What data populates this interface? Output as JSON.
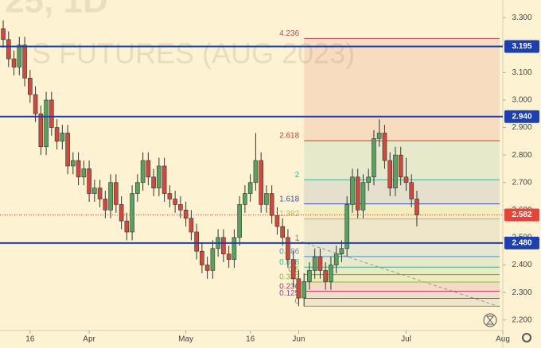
{
  "chart_data": {
    "type": "candlestick",
    "watermark": [
      "25, 1D",
      "S FUTURES (AUG 2023)"
    ],
    "up_color": "#5aa05e",
    "down_color": "#cf4a3c",
    "open": [
      3.26,
      3.22,
      3.15,
      3.12,
      3.2,
      3.08,
      3.02,
      2.95,
      2.83,
      3.0,
      2.9,
      2.85,
      2.88,
      2.76,
      2.78,
      2.72,
      2.75,
      2.66,
      2.68,
      2.64,
      2.6,
      2.7,
      2.62,
      2.56,
      2.52,
      2.66,
      2.7,
      2.78,
      2.72,
      2.68,
      2.76,
      2.66,
      2.64,
      2.62,
      2.6,
      2.57,
      2.52,
      2.45,
      2.4,
      2.38,
      2.46,
      2.5,
      2.44,
      2.42,
      2.5,
      2.62,
      2.66,
      2.7,
      2.78,
      2.62,
      2.66,
      2.58,
      2.54,
      2.5,
      2.42,
      2.35,
      2.28,
      2.34,
      2.38,
      2.43,
      2.38,
      2.34,
      2.4,
      2.44,
      2.46,
      2.62,
      2.72,
      2.6,
      2.7,
      2.72,
      2.86,
      2.88,
      2.78,
      2.68,
      2.8,
      2.72,
      2.7,
      2.64
    ],
    "high": [
      3.29,
      3.25,
      3.18,
      3.23,
      3.23,
      3.11,
      3.05,
      2.98,
      3.03,
      3.03,
      2.93,
      2.91,
      2.91,
      2.81,
      2.81,
      2.78,
      2.78,
      2.71,
      2.71,
      2.67,
      2.73,
      2.73,
      2.65,
      2.59,
      2.69,
      2.73,
      2.81,
      2.81,
      2.75,
      2.79,
      2.79,
      2.69,
      2.67,
      2.65,
      2.63,
      2.6,
      2.55,
      2.48,
      2.43,
      2.49,
      2.53,
      2.53,
      2.47,
      2.53,
      2.65,
      2.69,
      2.73,
      2.88,
      2.81,
      2.69,
      2.69,
      2.61,
      2.57,
      2.53,
      2.45,
      2.38,
      2.37,
      2.41,
      2.46,
      2.46,
      2.41,
      2.43,
      2.47,
      2.49,
      2.65,
      2.75,
      2.75,
      2.73,
      2.75,
      2.89,
      2.93,
      2.91,
      2.81,
      2.83,
      2.83,
      2.79,
      2.73,
      2.67
    ],
    "low": [
      3.19,
      3.12,
      3.09,
      3.09,
      3.05,
      2.99,
      2.92,
      2.8,
      2.8,
      2.87,
      2.82,
      2.82,
      2.73,
      2.73,
      2.69,
      2.69,
      2.63,
      2.63,
      2.61,
      2.57,
      2.57,
      2.59,
      2.53,
      2.49,
      2.49,
      2.63,
      2.67,
      2.69,
      2.65,
      2.65,
      2.63,
      2.61,
      2.59,
      2.57,
      2.54,
      2.49,
      2.42,
      2.37,
      2.35,
      2.35,
      2.43,
      2.41,
      2.39,
      2.39,
      2.47,
      2.59,
      2.63,
      2.67,
      2.59,
      2.59,
      2.55,
      2.51,
      2.47,
      2.39,
      2.32,
      2.25,
      2.25,
      2.31,
      2.35,
      2.35,
      2.31,
      2.31,
      2.37,
      2.41,
      2.43,
      2.59,
      2.57,
      2.57,
      2.67,
      2.69,
      2.83,
      2.75,
      2.65,
      2.65,
      2.69,
      2.67,
      2.61,
      2.54
    ],
    "close": [
      3.22,
      3.15,
      3.12,
      3.2,
      3.08,
      3.02,
      2.95,
      2.83,
      3.0,
      2.9,
      2.85,
      2.88,
      2.76,
      2.78,
      2.72,
      2.75,
      2.66,
      2.68,
      2.64,
      2.6,
      2.7,
      2.62,
      2.56,
      2.52,
      2.66,
      2.7,
      2.78,
      2.72,
      2.68,
      2.76,
      2.66,
      2.64,
      2.62,
      2.6,
      2.57,
      2.52,
      2.45,
      2.4,
      2.38,
      2.46,
      2.5,
      2.44,
      2.42,
      2.5,
      2.62,
      2.66,
      2.7,
      2.78,
      2.62,
      2.66,
      2.58,
      2.54,
      2.5,
      2.42,
      2.35,
      2.28,
      2.34,
      2.38,
      2.43,
      2.38,
      2.34,
      2.4,
      2.44,
      2.46,
      2.62,
      2.72,
      2.6,
      2.7,
      2.72,
      2.86,
      2.88,
      2.78,
      2.68,
      2.8,
      2.72,
      2.7,
      2.64,
      2.582
    ],
    "xlim": [
      -0.6,
      93
    ],
    "xticks": [
      {
        "value": 5,
        "label": "16"
      },
      {
        "value": 16,
        "label": "Apr"
      },
      {
        "value": 34,
        "label": "May"
      },
      {
        "value": 46,
        "label": "16"
      },
      {
        "value": 55,
        "label": "Jun"
      },
      {
        "value": 75,
        "label": "Jul"
      },
      {
        "value": 93,
        "label": "Aug"
      }
    ],
    "ylim": [
      2.098,
      3.364
    ],
    "yticks": [
      {
        "value": 3.3,
        "label": "3.300"
      },
      {
        "value": 3.2,
        "label": "3.200"
      },
      {
        "value": 3.1,
        "label": "3.100"
      },
      {
        "value": 3.0,
        "label": "3.000"
      },
      {
        "value": 2.9,
        "label": "2.900"
      },
      {
        "value": 2.8,
        "label": "2.800"
      },
      {
        "value": 2.7,
        "label": "2.700"
      },
      {
        "value": 2.6,
        "label": "2.600"
      },
      {
        "value": 2.5,
        "label": "2.500"
      },
      {
        "value": 2.4,
        "label": "2.400"
      },
      {
        "value": 2.3,
        "label": "2.300"
      },
      {
        "value": 2.2,
        "label": "2.200"
      }
    ],
    "price_lines": [
      {
        "value": 3.195,
        "color": "#1e3fae"
      },
      {
        "value": 2.94,
        "label": "2.940",
        "color": "#1e3fae"
      },
      {
        "value": 2.48,
        "label": "2.480",
        "color": "#1e3fae"
      }
    ],
    "last_price": {
      "value": 2.582,
      "color": "#e5443a"
    },
    "fib": {
      "start": 56,
      "low": 2.25,
      "high": 2.48,
      "levels": [
        4.236,
        2.618,
        2,
        1.618,
        1.382,
        1,
        0.786,
        0.618,
        0.5,
        0.382,
        0.236,
        0.125,
        0
      ],
      "colors": [
        "#b84a6a",
        "#d03a3a",
        "#3fae96",
        "#3a4fb0",
        "#a5c83c",
        "#888888",
        "#4a8fc8",
        "#3fae96",
        "#5aac4a",
        "#8ab83a",
        "#c0306a",
        "#9040a8",
        "#888888"
      ]
    }
  }
}
